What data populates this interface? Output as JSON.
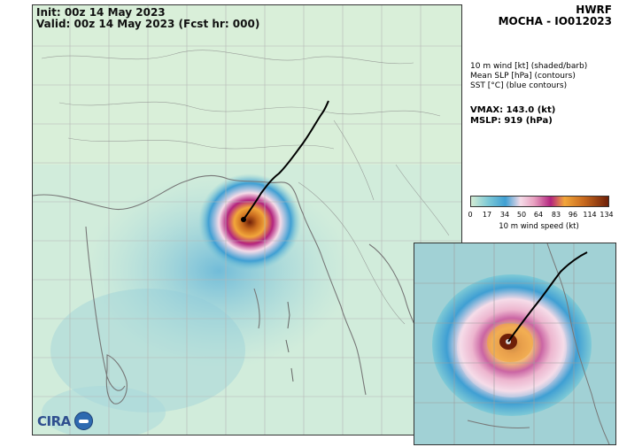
{
  "header": {
    "init": "Init:   00z 14 May 2023",
    "valid": "Valid: 00z 14 May 2023 (Fcst hr: 000)"
  },
  "title": {
    "model": "HWRF",
    "storm": "MOCHA - IO012023"
  },
  "legend": {
    "line1": "10 m wind [kt] (shaded/barb)",
    "line2": "Mean SLP [hPa] (contours)",
    "line3": "SST [°C] (blue contours)"
  },
  "stats": {
    "vmax": "VMAX: 143.0 (kt)",
    "mslp": "MSLP:  919 (hPa)"
  },
  "colorbar": {
    "ticks": [
      "0",
      "17",
      "34",
      "50",
      "64",
      "83",
      "96",
      "114",
      "134"
    ],
    "label": "10 m wind speed (kt)",
    "colors": [
      "#d4ecd4",
      "#7fcad6",
      "#3f9fd3",
      "#f5dbe8",
      "#e8a0c0",
      "#b3247e",
      "#f2a63a",
      "#c86a1e",
      "#6e1f08"
    ]
  },
  "logo": {
    "text": "CIRA"
  },
  "colors": {
    "land": "#d9efd9",
    "track": "#000000",
    "coast": "#777777"
  }
}
